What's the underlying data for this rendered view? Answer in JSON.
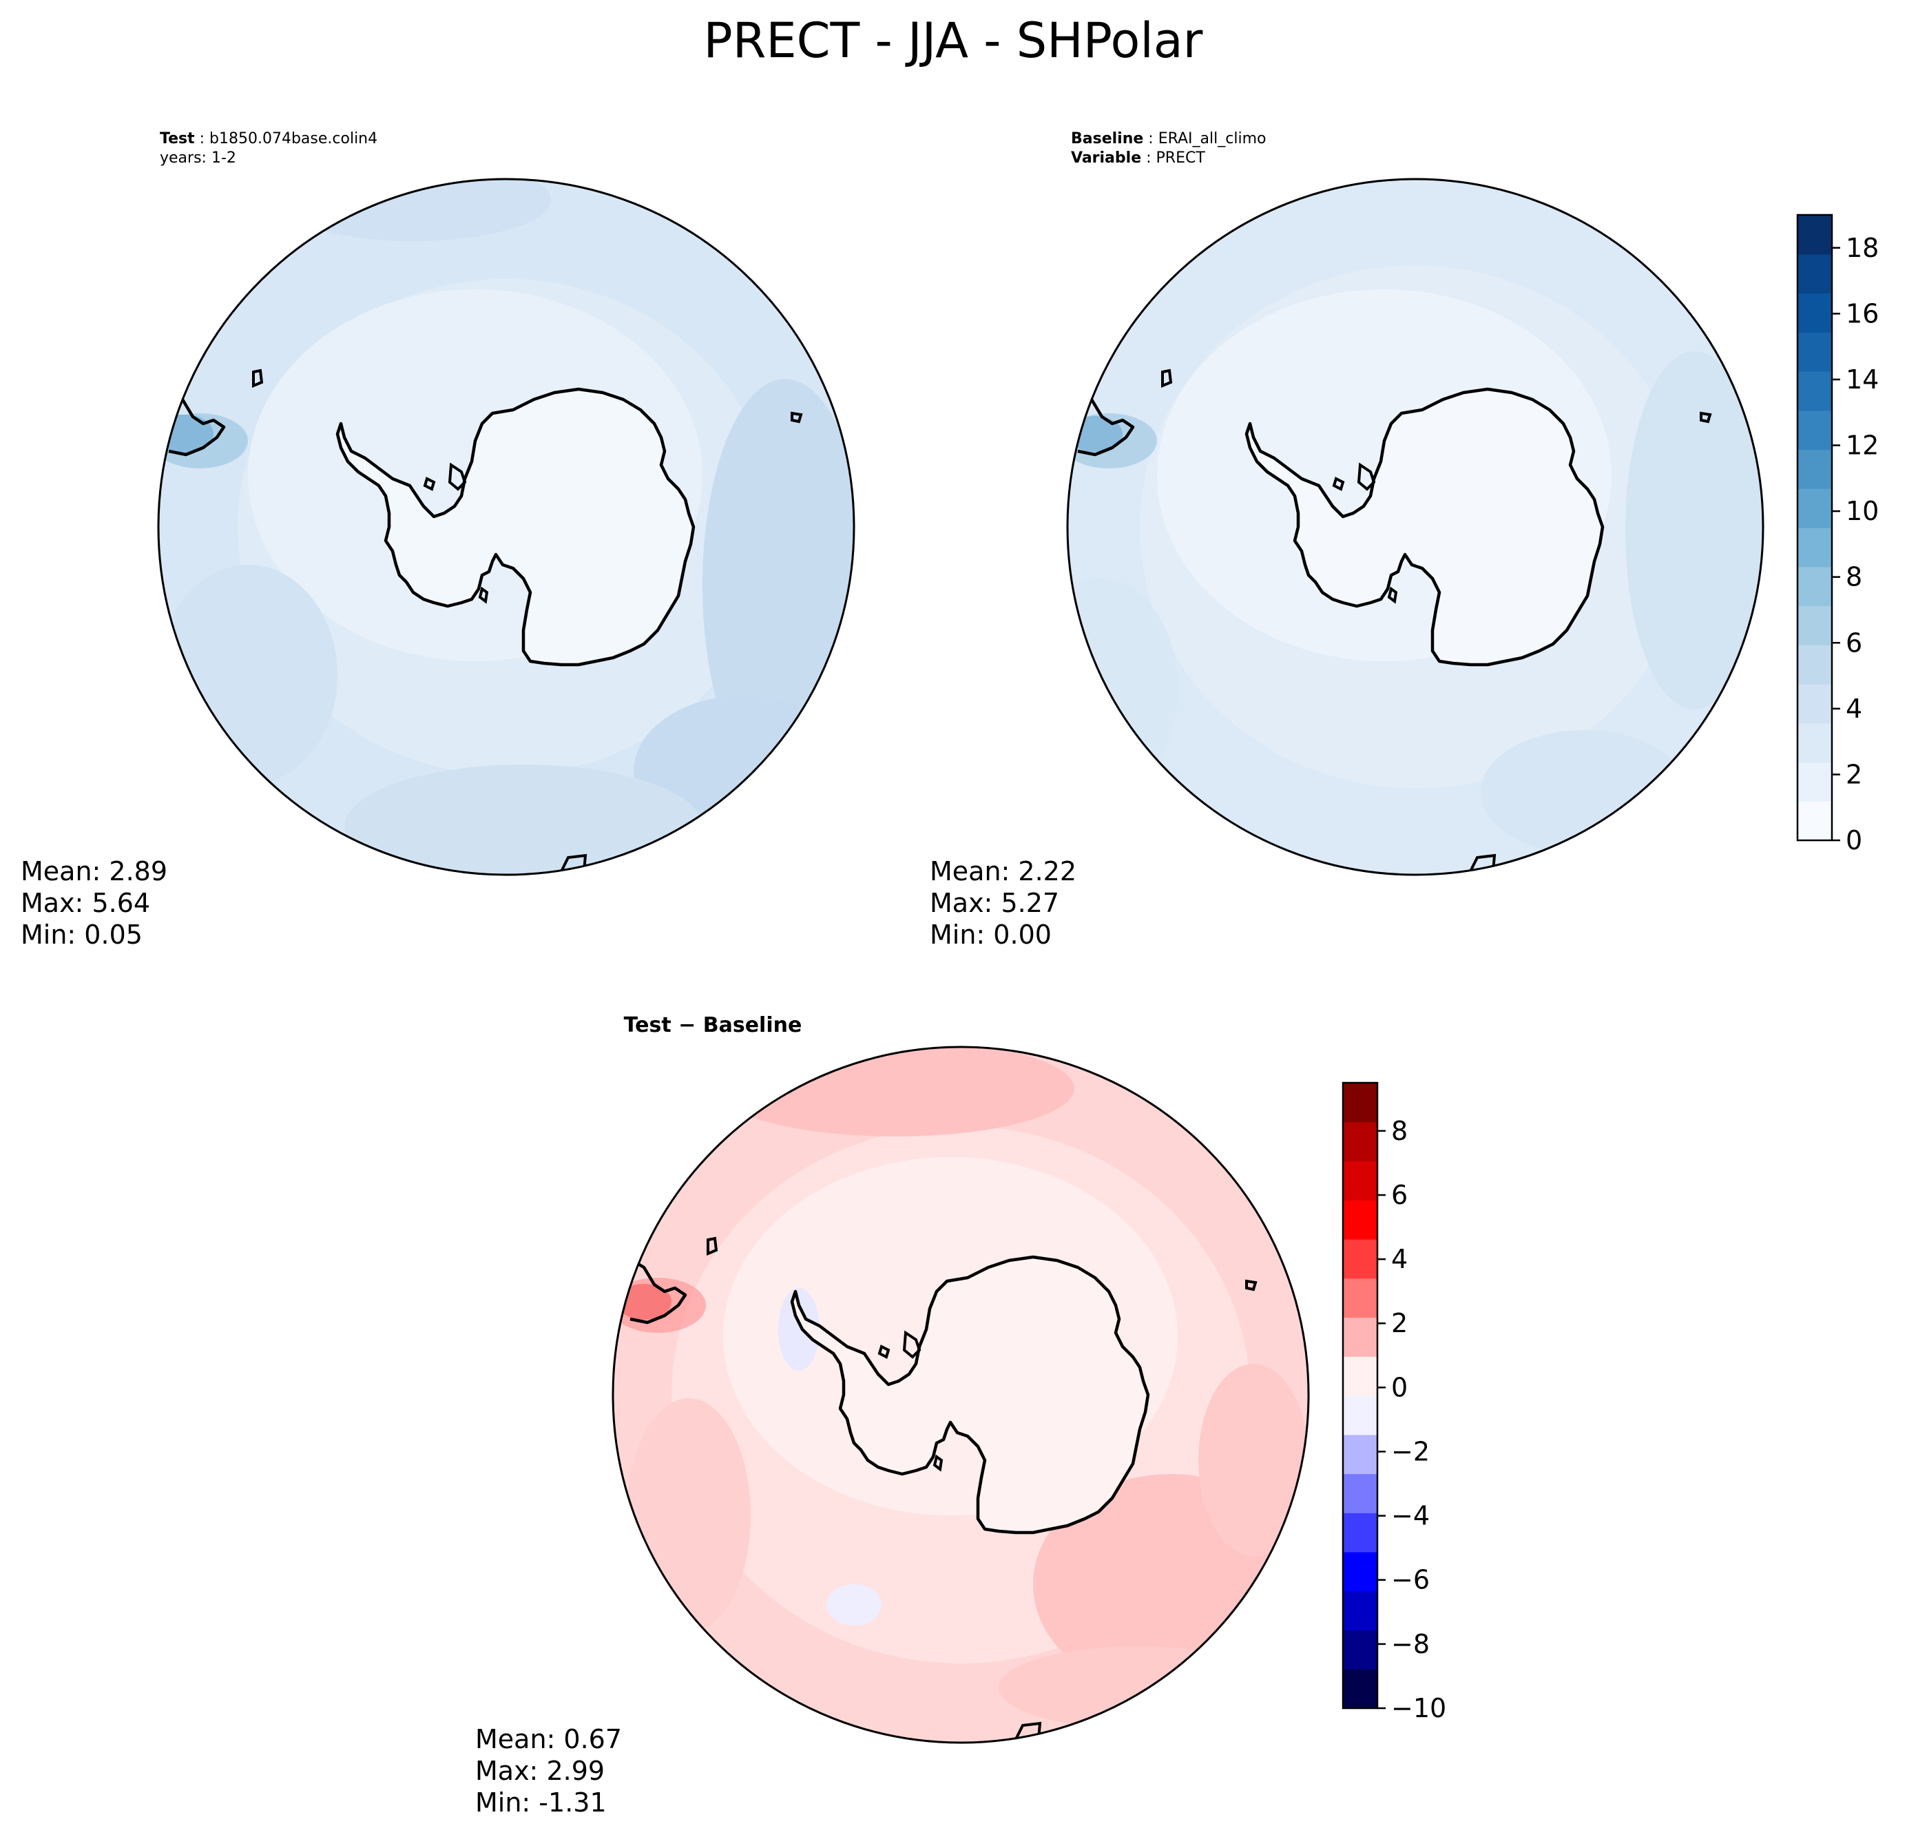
{
  "figure": {
    "title": "PRECT - JJA - SHPolar"
  },
  "panels": {
    "test": {
      "label_name": "Test",
      "label_value": "b1850.074base.colin4",
      "years": "years: 1-2",
      "stats": {
        "mean": "Mean:  2.89",
        "max": "Max:  5.64",
        "min": "Min:  0.05"
      }
    },
    "baseline": {
      "label_name": "Baseline",
      "label_value": "ERAI_all_climo",
      "variable_name": "Variable",
      "variable_value": "PRECT",
      "stats": {
        "mean": "Mean:  2.22",
        "max": "Max:  5.27",
        "min": "Min:  0.00"
      }
    },
    "diff": {
      "title_left": "Test",
      "title_sep": "−",
      "title_right": "Baseline",
      "stats": {
        "mean": "Mean:  0.67",
        "max": "Max:  2.99",
        "min": "Min: -1.31"
      }
    }
  },
  "colorbars": {
    "precip": {
      "ticks": [
        "0",
        "2",
        "4",
        "6",
        "8",
        "10",
        "12",
        "14",
        "16",
        "18"
      ],
      "tick_values": [
        0,
        2,
        4,
        6,
        8,
        10,
        12,
        14,
        16,
        18
      ],
      "range": [
        0,
        19
      ],
      "colormap": "Blues",
      "colors": [
        "#f7fbff",
        "#e9f2fb",
        "#dce9f6",
        "#cfe1f2",
        "#c1d9ed",
        "#abcfe5",
        "#94c4df",
        "#78b5d8",
        "#5ea4cf",
        "#4a95c6",
        "#3584bf",
        "#2373b5",
        "#1764ab",
        "#0b559e",
        "#08458a",
        "#08306b"
      ]
    },
    "diff": {
      "ticks": [
        "8",
        "6",
        "4",
        "2",
        "0",
        "−2",
        "−4",
        "−6",
        "−8",
        "−10"
      ],
      "tick_values": [
        8,
        6,
        4,
        2,
        0,
        -2,
        -4,
        -6,
        -8,
        -10
      ],
      "range": [
        -10,
        9.5
      ],
      "colormap": "seismic",
      "colors": [
        "#00004c",
        "#000088",
        "#0000c4",
        "#0000ff",
        "#3d3dff",
        "#7979ff",
        "#b5b5ff",
        "#f1f1ff",
        "#fff1f1",
        "#ffb5b5",
        "#ff7979",
        "#ff3d3d",
        "#ff0000",
        "#d80000",
        "#b40000",
        "#800000"
      ]
    }
  }
}
